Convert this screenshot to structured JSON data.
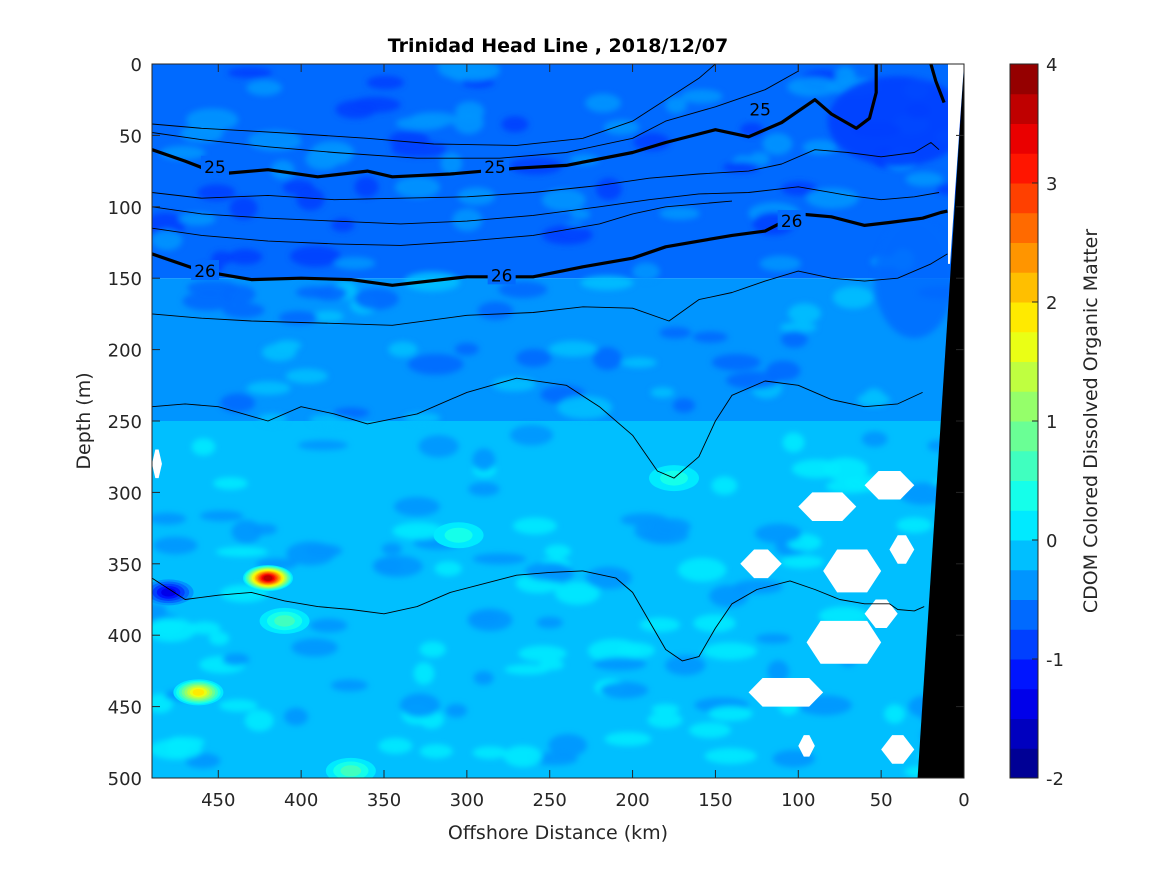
{
  "chart_data": {
    "type": "heatmap",
    "title": "Trinidad Head Line , 2018/12/07",
    "xlabel": "Offshore Distance (km)",
    "ylabel": "Depth (m)",
    "xlim": [
      490,
      0
    ],
    "ylim": [
      500,
      0
    ],
    "x_ticks": [
      450,
      400,
      350,
      300,
      250,
      200,
      150,
      100,
      50,
      0
    ],
    "y_ticks": [
      0,
      50,
      100,
      150,
      200,
      250,
      300,
      350,
      400,
      450,
      500
    ],
    "colorbar": {
      "label": "CDOM Colored Dissolved Organic Matter",
      "min": -2,
      "max": 4,
      "ticks": [
        -2,
        -1,
        0,
        1,
        2,
        3,
        4
      ],
      "levels": 24
    },
    "background_field": {
      "shallow_value_0_150m": -0.6,
      "mid_value_150_250m": -0.3,
      "deep_value_250_500m": -0.1
    },
    "anomalies": [
      {
        "x": 420,
        "depth": 360,
        "value": 3.6
      },
      {
        "x": 462,
        "depth": 440,
        "value": 1.8
      },
      {
        "x": 410,
        "depth": 390,
        "value": 0.6
      },
      {
        "x": 305,
        "depth": 330,
        "value": 0.4
      },
      {
        "x": 480,
        "depth": 370,
        "value": -1.4
      },
      {
        "x": 370,
        "depth": 495,
        "value": 0.6
      },
      {
        "x": 175,
        "depth": 290,
        "value": 0.4
      }
    ],
    "no_data_regions": [
      {
        "x": [
          60,
          30
        ],
        "depth": [
          285,
          305
        ]
      },
      {
        "x": [
          100,
          65
        ],
        "depth": [
          300,
          320
        ]
      },
      {
        "x": [
          85,
          50
        ],
        "depth": [
          340,
          370
        ]
      },
      {
        "x": [
          135,
          110
        ],
        "depth": [
          340,
          360
        ]
      },
      {
        "x": [
          95,
          50
        ],
        "depth": [
          390,
          420
        ]
      },
      {
        "x": [
          60,
          40
        ],
        "depth": [
          375,
          395
        ]
      },
      {
        "x": [
          130,
          85
        ],
        "depth": [
          430,
          450
        ]
      },
      {
        "x": [
          50,
          30
        ],
        "depth": [
          470,
          490
        ]
      },
      {
        "x": [
          100,
          90
        ],
        "depth": [
          470,
          485
        ]
      },
      {
        "x": [
          45,
          30
        ],
        "depth": [
          330,
          350
        ]
      },
      {
        "x": [
          490,
          484
        ],
        "depth": [
          270,
          290
        ]
      }
    ],
    "bathymetry": {
      "x_at_surface": 0,
      "x_at_bottom": 28
    },
    "density_contours": [
      {
        "label": "25",
        "bold": true,
        "label_positions": [
          {
            "x": 452,
            "depth": 72
          },
          {
            "x": 283,
            "depth": 72
          },
          {
            "x": 123,
            "depth": 32
          }
        ],
        "points": [
          [
            490,
            60
          ],
          [
            470,
            68
          ],
          [
            450,
            77
          ],
          [
            420,
            74
          ],
          [
            390,
            79
          ],
          [
            360,
            75
          ],
          [
            345,
            79
          ],
          [
            310,
            77
          ],
          [
            270,
            73
          ],
          [
            240,
            71
          ],
          [
            200,
            62
          ],
          [
            180,
            55
          ],
          [
            150,
            46
          ],
          [
            130,
            51
          ],
          [
            110,
            41
          ],
          [
            100,
            33
          ],
          [
            90,
            25
          ],
          [
            80,
            35
          ],
          [
            65,
            45
          ],
          [
            57,
            38
          ],
          [
            53,
            20
          ],
          [
            53,
            0
          ]
        ]
      },
      {
        "label": "25",
        "bold": true,
        "label_positions": [],
        "points": [
          [
            20,
            0
          ],
          [
            17,
            12
          ],
          [
            12,
            27
          ]
        ]
      },
      {
        "label": "26",
        "bold": true,
        "label_positions": [
          {
            "x": 458,
            "depth": 145
          },
          {
            "x": 279,
            "depth": 148
          },
          {
            "x": 104,
            "depth": 110
          }
        ],
        "points": [
          [
            490,
            133
          ],
          [
            460,
            145
          ],
          [
            430,
            151
          ],
          [
            400,
            150
          ],
          [
            370,
            151
          ],
          [
            345,
            155
          ],
          [
            300,
            149
          ],
          [
            260,
            149
          ],
          [
            230,
            142
          ],
          [
            200,
            136
          ],
          [
            180,
            128
          ],
          [
            140,
            120
          ],
          [
            120,
            117
          ],
          [
            100,
            105
          ],
          [
            80,
            107
          ],
          [
            60,
            113
          ],
          [
            45,
            111
          ],
          [
            25,
            108
          ],
          [
            14,
            104
          ],
          [
            10,
            103
          ]
        ]
      },
      {
        "label": "",
        "bold": false,
        "label_positions": [],
        "points": [
          [
            490,
            42
          ],
          [
            460,
            45
          ],
          [
            430,
            47
          ],
          [
            400,
            49
          ],
          [
            360,
            52
          ],
          [
            320,
            56
          ],
          [
            270,
            57
          ],
          [
            230,
            52
          ],
          [
            200,
            40
          ],
          [
            180,
            25
          ],
          [
            160,
            10
          ],
          [
            150,
            0
          ]
        ]
      },
      {
        "label": "",
        "bold": false,
        "label_positions": [],
        "points": [
          [
            490,
            48
          ],
          [
            460,
            53
          ],
          [
            420,
            58
          ],
          [
            380,
            62
          ],
          [
            330,
            66
          ],
          [
            280,
            66
          ],
          [
            240,
            62
          ],
          [
            200,
            52
          ],
          [
            180,
            40
          ],
          [
            150,
            30
          ],
          [
            120,
            18
          ],
          [
            100,
            5
          ],
          [
            100,
            0
          ]
        ]
      },
      {
        "label": "",
        "bold": false,
        "label_positions": [],
        "points": [
          [
            490,
            90
          ],
          [
            460,
            94
          ],
          [
            420,
            92
          ],
          [
            380,
            95
          ],
          [
            340,
            94
          ],
          [
            300,
            93
          ],
          [
            260,
            90
          ],
          [
            220,
            85
          ],
          [
            190,
            80
          ],
          [
            160,
            77
          ],
          [
            130,
            75
          ],
          [
            110,
            70
          ],
          [
            90,
            60
          ],
          [
            70,
            62
          ],
          [
            50,
            65
          ],
          [
            30,
            62
          ],
          [
            20,
            55
          ],
          [
            15,
            60
          ]
        ]
      },
      {
        "label": "",
        "bold": false,
        "label_positions": [],
        "points": [
          [
            490,
            100
          ],
          [
            460,
            105
          ],
          [
            420,
            108
          ],
          [
            380,
            110
          ],
          [
            340,
            112
          ],
          [
            300,
            110
          ],
          [
            260,
            106
          ],
          [
            220,
            100
          ],
          [
            190,
            95
          ],
          [
            160,
            91
          ],
          [
            130,
            90
          ],
          [
            100,
            86
          ],
          [
            70,
            92
          ],
          [
            50,
            95
          ],
          [
            30,
            93
          ],
          [
            15,
            90
          ]
        ]
      },
      {
        "label": "",
        "bold": false,
        "label_positions": [],
        "points": [
          [
            490,
            115
          ],
          [
            460,
            120
          ],
          [
            420,
            124
          ],
          [
            380,
            126
          ],
          [
            340,
            127
          ],
          [
            300,
            124
          ],
          [
            260,
            120
          ],
          [
            220,
            112
          ],
          [
            200,
            105
          ],
          [
            180,
            100
          ],
          [
            160,
            98
          ],
          [
            140,
            96
          ]
        ]
      },
      {
        "label": "",
        "bold": false,
        "label_positions": [],
        "points": [
          [
            490,
            175
          ],
          [
            460,
            178
          ],
          [
            430,
            180
          ],
          [
            400,
            181
          ],
          [
            370,
            182
          ],
          [
            345,
            183
          ],
          [
            300,
            176
          ],
          [
            260,
            174
          ],
          [
            230,
            170
          ],
          [
            200,
            171
          ],
          [
            178,
            180
          ],
          [
            160,
            165
          ],
          [
            140,
            160
          ],
          [
            120,
            152
          ],
          [
            100,
            145
          ],
          [
            80,
            150
          ],
          [
            60,
            152
          ],
          [
            40,
            150
          ],
          [
            20,
            140
          ],
          [
            10,
            133
          ]
        ]
      },
      {
        "label": "",
        "bold": false,
        "label_positions": [],
        "points": [
          [
            490,
            240
          ],
          [
            470,
            238
          ],
          [
            450,
            240
          ],
          [
            420,
            250
          ],
          [
            400,
            240
          ],
          [
            380,
            245
          ],
          [
            360,
            252
          ],
          [
            330,
            245
          ],
          [
            300,
            230
          ],
          [
            270,
            220
          ],
          [
            240,
            225
          ],
          [
            220,
            240
          ],
          [
            200,
            260
          ],
          [
            185,
            285
          ],
          [
            175,
            290
          ],
          [
            160,
            275
          ],
          [
            150,
            250
          ],
          [
            140,
            232
          ],
          [
            120,
            222
          ],
          [
            100,
            225
          ],
          [
            80,
            235
          ],
          [
            60,
            240
          ],
          [
            40,
            238
          ],
          [
            25,
            230
          ]
        ]
      },
      {
        "label": "",
        "bold": false,
        "label_positions": [],
        "points": [
          [
            490,
            360
          ],
          [
            470,
            375
          ],
          [
            450,
            372
          ],
          [
            430,
            370
          ],
          [
            410,
            376
          ],
          [
            390,
            380
          ],
          [
            370,
            382
          ],
          [
            350,
            385
          ],
          [
            330,
            380
          ],
          [
            310,
            370
          ],
          [
            290,
            364
          ],
          [
            270,
            358
          ],
          [
            250,
            356
          ],
          [
            230,
            355
          ],
          [
            210,
            360
          ],
          [
            200,
            370
          ],
          [
            190,
            390
          ],
          [
            180,
            410
          ],
          [
            170,
            418
          ],
          [
            160,
            415
          ],
          [
            150,
            395
          ],
          [
            140,
            378
          ],
          [
            125,
            368
          ],
          [
            105,
            362
          ],
          [
            90,
            368
          ],
          [
            75,
            375
          ],
          [
            60,
            378
          ],
          [
            45,
            378
          ],
          [
            40,
            382
          ],
          [
            30,
            383
          ],
          [
            24,
            380
          ]
        ]
      }
    ]
  }
}
